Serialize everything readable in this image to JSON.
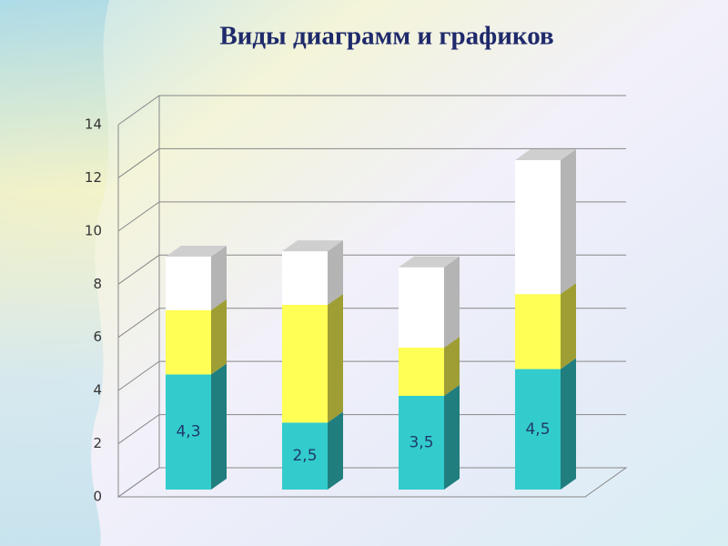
{
  "chart_data": {
    "type": "bar3d_stacked",
    "title": "Виды диаграмм и графиков",
    "categories": [
      null,
      null,
      null,
      null
    ],
    "series": [
      {
        "color": "#33cccc",
        "values": [
          4.3,
          2.5,
          3.5,
          4.5
        ],
        "value_labels": [
          "4,3",
          "2,5",
          "3,5",
          "4,5"
        ]
      },
      {
        "color": "#ffff55",
        "values": [
          2.4,
          4.4,
          1.8,
          2.8
        ]
      },
      {
        "color": "#ffffff",
        "values": [
          2,
          2,
          3,
          5
        ]
      }
    ],
    "ylim": [
      0,
      14
    ],
    "yticks": [
      0,
      2,
      4,
      6,
      8,
      10,
      12,
      14
    ],
    "grid": true
  }
}
